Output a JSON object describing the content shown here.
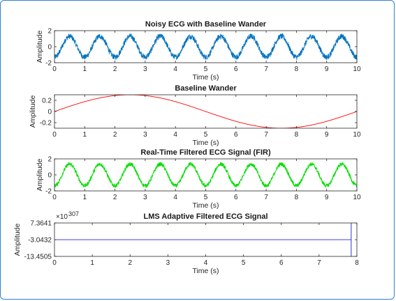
{
  "chart_data": [
    {
      "type": "line",
      "title": "Noisy ECG with Baseline Wander",
      "xlabel": "Time (s)",
      "ylabel": "Amplitude",
      "xlim": [
        0,
        10
      ],
      "ylim": [
        -2,
        2
      ],
      "xticks": [
        0,
        1,
        2,
        3,
        4,
        5,
        6,
        7,
        8,
        9,
        10
      ],
      "yticks": [
        -2,
        0,
        2
      ],
      "ytick_labels": [
        "-2",
        "0",
        "2"
      ],
      "line_color": "#0072bd",
      "series": [
        {
          "values": {
            "signal": "sinusoid",
            "frequency_hz": 1.0,
            "amplitude": 1.3,
            "noise_amplitude": 0.35,
            "x_start": 0,
            "x_end": 10
          }
        }
      ]
    },
    {
      "type": "line",
      "title": "Baseline Wander",
      "xlabel": "Time (s)",
      "ylabel": "Amplitude",
      "xlim": [
        0,
        10
      ],
      "ylim": [
        -0.3,
        0.3
      ],
      "xticks": [
        0,
        1,
        2,
        3,
        4,
        5,
        6,
        7,
        8,
        9,
        10
      ],
      "yticks": [
        -0.2,
        0,
        0.2
      ],
      "ytick_labels": [
        "-0.2",
        "0",
        "0.2"
      ],
      "line_color": "#ff0000",
      "series": [
        {
          "values": {
            "signal": "sinusoid",
            "frequency_hz": 0.1,
            "amplitude": 0.3,
            "noise_amplitude": 0,
            "x_start": 0,
            "x_end": 10
          }
        }
      ]
    },
    {
      "type": "line",
      "title": "Real-Time Filtered ECG Signal (FIR)",
      "xlabel": "Time (s)",
      "ylabel": "Amplitude",
      "xlim": [
        0,
        10
      ],
      "ylim": [
        -2,
        2
      ],
      "xticks": [
        0,
        1,
        2,
        3,
        4,
        5,
        6,
        7,
        8,
        9,
        10
      ],
      "yticks": [
        -2,
        0,
        2
      ],
      "ytick_labels": [
        "-2",
        "0",
        "2"
      ],
      "line_color": "#00dd00",
      "series": [
        {
          "values": {
            "signal": "sinusoid",
            "frequency_hz": 1.0,
            "amplitude": 1.35,
            "noise_amplitude": 0.25,
            "x_start": 0,
            "x_end": 10
          }
        }
      ]
    },
    {
      "type": "line",
      "title": "LMS Adaptive Filtered ECG Signal",
      "xlabel": "Time (s)",
      "ylabel": "Amplitude",
      "xlim": [
        0,
        8
      ],
      "ylim": [
        -13.4505,
        7.3641
      ],
      "xticks": [
        0,
        1,
        2,
        3,
        4,
        5,
        6,
        7,
        8
      ],
      "yticks": [
        -13.4505,
        -3.0432,
        7.3641
      ],
      "ytick_labels": [
        "-13.4505",
        "-3.0432",
        "7.3641"
      ],
      "y_exponent": "307",
      "line_color": "#0000cc",
      "series": [
        {
          "values": {
            "signal": "constant",
            "level": -3.0432,
            "x_start": 0,
            "x_end": 7.85,
            "vertical_spike_at": 7.85
          }
        }
      ]
    }
  ]
}
